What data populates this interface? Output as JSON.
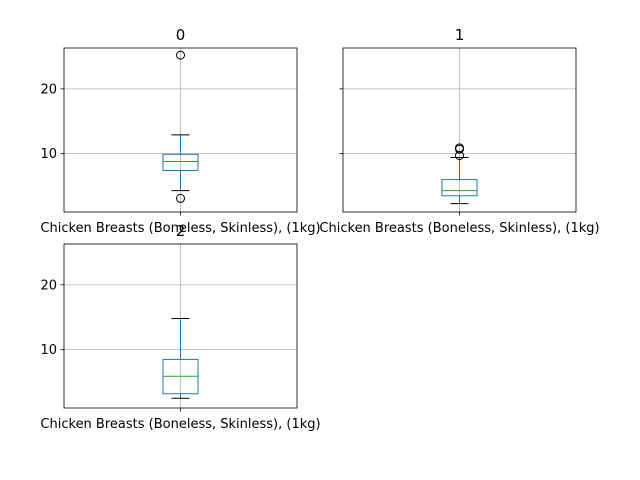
{
  "chart_data": [
    {
      "type": "box",
      "title": "0",
      "categories": [
        "Chicken Breasts (Boneless, Skinless), (1kg)"
      ],
      "yticks": [
        10,
        20
      ],
      "ylim": [
        1.0,
        26.3
      ],
      "grid": true,
      "stats": {
        "whislo": 4.3,
        "q1": 7.4,
        "med": 8.8,
        "q3": 9.9,
        "whishi": 12.9,
        "fliers": [
          25.2,
          3.1
        ]
      }
    },
    {
      "type": "box",
      "title": "1",
      "categories": [
        "Chicken Breasts (Boneless, Skinless), (1kg)"
      ],
      "yticks": [
        10,
        20
      ],
      "ylim": [
        1.0,
        26.3
      ],
      "grid": true,
      "stats": {
        "whislo": 2.3,
        "q1": 3.5,
        "med": 4.3,
        "q3": 6.0,
        "whishi": 9.4,
        "fliers": [
          9.7,
          10.7,
          10.9
        ]
      }
    },
    {
      "type": "box",
      "title": "2",
      "categories": [
        "Chicken Breasts (Boneless, Skinless), (1kg)"
      ],
      "yticks": [
        10,
        20
      ],
      "ylim": [
        1.0,
        26.3
      ],
      "grid": true,
      "stats": {
        "whislo": 2.5,
        "q1": 3.2,
        "med": 5.9,
        "q3": 8.5,
        "whishi": 14.8,
        "fliers": []
      }
    }
  ],
  "colors": {
    "box": "#1f77b4",
    "median": "#2ca02c",
    "grid": "#b0b0b0",
    "axis": "#000000",
    "flier": "#000000"
  }
}
